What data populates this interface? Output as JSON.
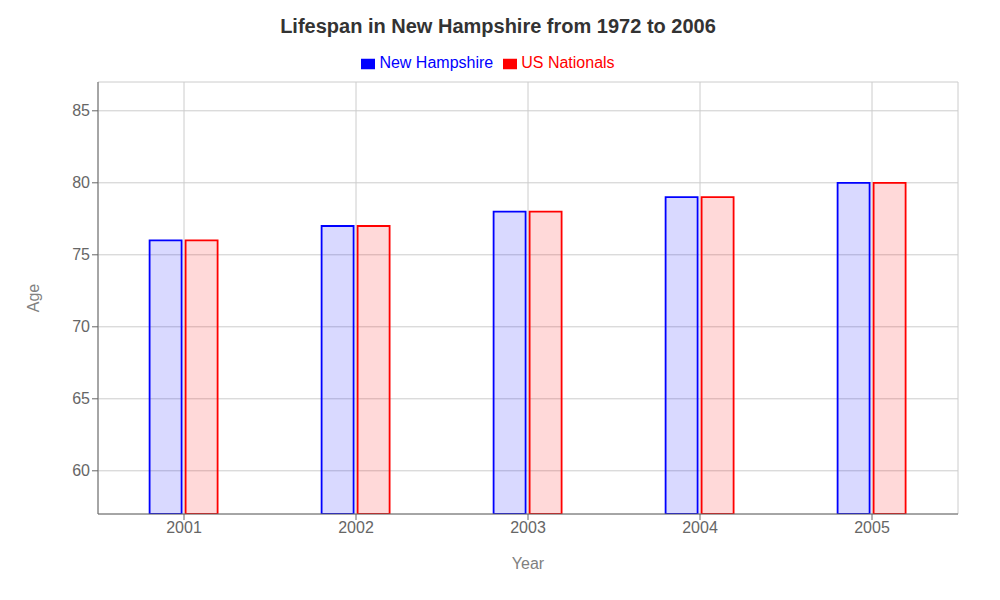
{
  "chart_data": {
    "type": "bar",
    "title": "Lifespan in New Hampshire from 1972 to 2006",
    "x_label": "Year",
    "y_label": "Age",
    "categories": [
      "2001",
      "2002",
      "2003",
      "2004",
      "2005"
    ],
    "series": [
      {
        "name": "New Hampshire",
        "color": "#0000ff",
        "values": [
          76,
          77,
          78,
          79,
          80
        ]
      },
      {
        "name": "US Nationals",
        "color": "#ff0000",
        "values": [
          76,
          77,
          78,
          79,
          80
        ]
      }
    ],
    "ylim": [
      57,
      87
    ],
    "yticks": [
      60,
      65,
      70,
      75,
      80,
      85
    ],
    "grid": true,
    "legend": "top"
  }
}
